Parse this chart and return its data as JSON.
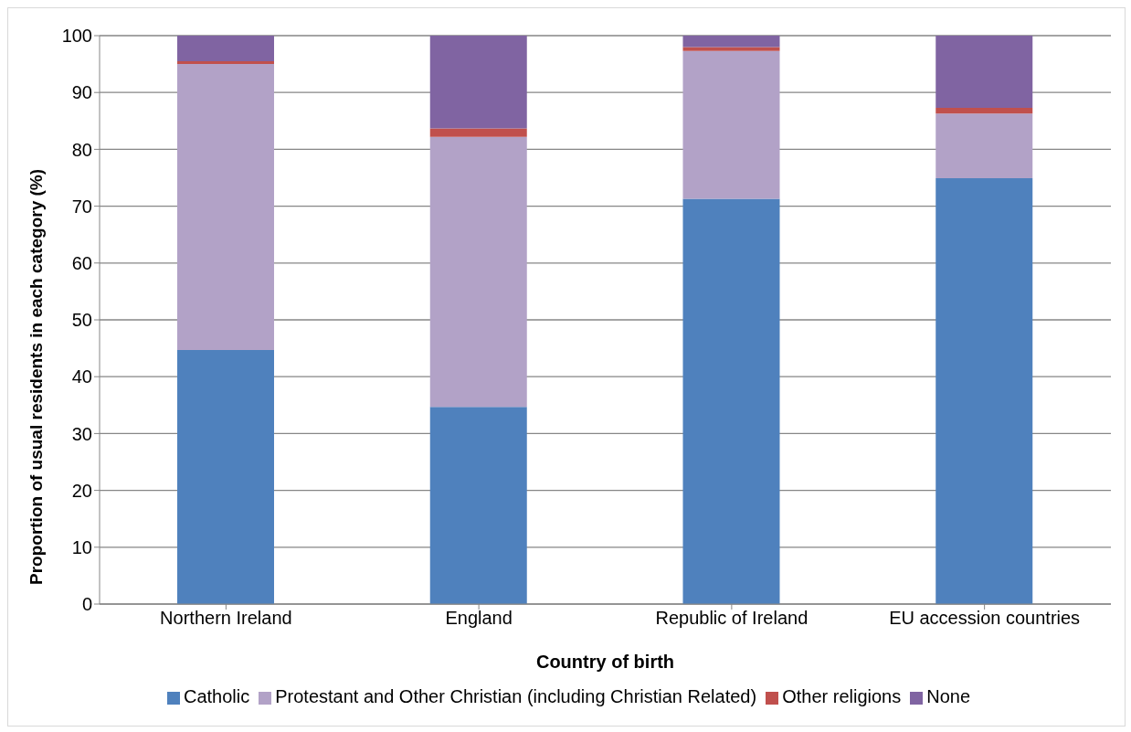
{
  "chart_data": {
    "type": "bar",
    "stacked": true,
    "xlabel": "Country of birth",
    "ylabel": "Proportion of usual residents in each category (%)",
    "categories": [
      "Northern Ireland",
      "England",
      "Republic of Ireland",
      "EU accession countries"
    ],
    "series": [
      {
        "name": "Catholic",
        "color": "#4f81bd",
        "values": [
          44.7,
          34.7,
          71.3,
          74.9
        ]
      },
      {
        "name": "Protestant and Other Christian (including Christian Related)",
        "color": "#b2a2c7",
        "values": [
          50.3,
          47.5,
          26.0,
          11.4
        ]
      },
      {
        "name": "Other religions",
        "color": "#c0504d",
        "values": [
          0.5,
          1.5,
          0.7,
          1.0
        ]
      },
      {
        "name": "None",
        "color": "#8064a2",
        "values": [
          4.5,
          16.3,
          2.0,
          12.7
        ]
      }
    ],
    "ylim": [
      0,
      100
    ],
    "yticks": [
      0,
      10,
      20,
      30,
      40,
      50,
      60,
      70,
      80,
      90,
      100
    ],
    "grid": "y",
    "legend": "bottom"
  }
}
